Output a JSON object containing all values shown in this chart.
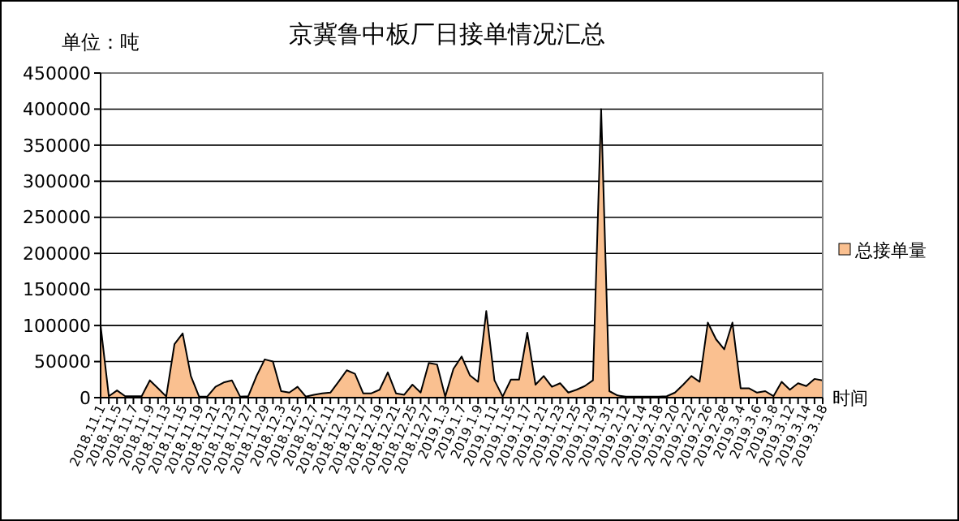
{
  "chart_data": {
    "type": "area",
    "title": "京冀鲁中板厂日接单情况汇总",
    "ylabel": "单位：吨",
    "xlabel": "时间",
    "categories": [
      "2018.11.1",
      null,
      "2018.11.5",
      null,
      "2018.11.7",
      null,
      "2018.11.9",
      null,
      "2018.11.13",
      null,
      "2018.11.15",
      null,
      "2018.11.19",
      null,
      "2018.11.21",
      null,
      "2018.11.23",
      null,
      "2018.11.27",
      null,
      "2018.11.29",
      null,
      "2018.12.3",
      null,
      "2018.12.5",
      null,
      "2018.12.7",
      null,
      "2018.12.11",
      null,
      "2018.12.13",
      null,
      "2018.12.17",
      null,
      "2018.12.19",
      null,
      "2018.12.21",
      null,
      "2018.12.25",
      null,
      "2018.12.27",
      null,
      "2019.1.3",
      null,
      "2019.1.7",
      null,
      "2019.1.9",
      null,
      "2019.1.11",
      null,
      "2019.1.15",
      null,
      "2019.1.17",
      null,
      "2019.1.21",
      null,
      "2019.1.23",
      null,
      "2019.1.25",
      null,
      "2019.1.29",
      null,
      "2019.1.31",
      null,
      "2019.2.12",
      null,
      "2019.2.14",
      null,
      "2019.2.18",
      null,
      "2019.2.20",
      null,
      "2019.2.22",
      null,
      "2019.2.26",
      null,
      "2019.2.28",
      null,
      "2019.3.4",
      null,
      "2019.3.6",
      null,
      "2019.3.8",
      null,
      "2019.3.12",
      null,
      "2019.3.14",
      null,
      "2019.3.18"
    ],
    "series": [
      {
        "name": "总接单量",
        "color": "#fac090",
        "values": [
          100000,
          2000,
          10000,
          2000,
          2000,
          2000,
          24000,
          13000,
          1500,
          74000,
          89000,
          30000,
          1500,
          1500,
          15000,
          21000,
          24000,
          1500,
          2000,
          30000,
          53000,
          50000,
          9000,
          7000,
          15000,
          1500,
          4000,
          6000,
          7000,
          22000,
          38000,
          33000,
          6000,
          6000,
          11000,
          35000,
          6000,
          4000,
          18000,
          7000,
          48000,
          46000,
          1500,
          40000,
          57000,
          31000,
          22000,
          120000,
          24000,
          1500,
          25000,
          25000,
          90000,
          18000,
          30000,
          15000,
          20000,
          7000,
          11000,
          16000,
          24000,
          400000,
          9000,
          3000,
          1500,
          1500,
          1500,
          1500,
          1500,
          2000,
          7000,
          18000,
          30000,
          22000,
          104000,
          81000,
          67000,
          104000,
          13000,
          13000,
          7000,
          9000,
          2000,
          22000,
          11000,
          20000,
          16000,
          26000,
          24000
        ]
      }
    ],
    "ylim": [
      0,
      450000
    ],
    "yticks": [
      0,
      50000,
      100000,
      150000,
      200000,
      250000,
      300000,
      350000,
      400000,
      450000
    ],
    "grid": "y",
    "legend": "right"
  }
}
